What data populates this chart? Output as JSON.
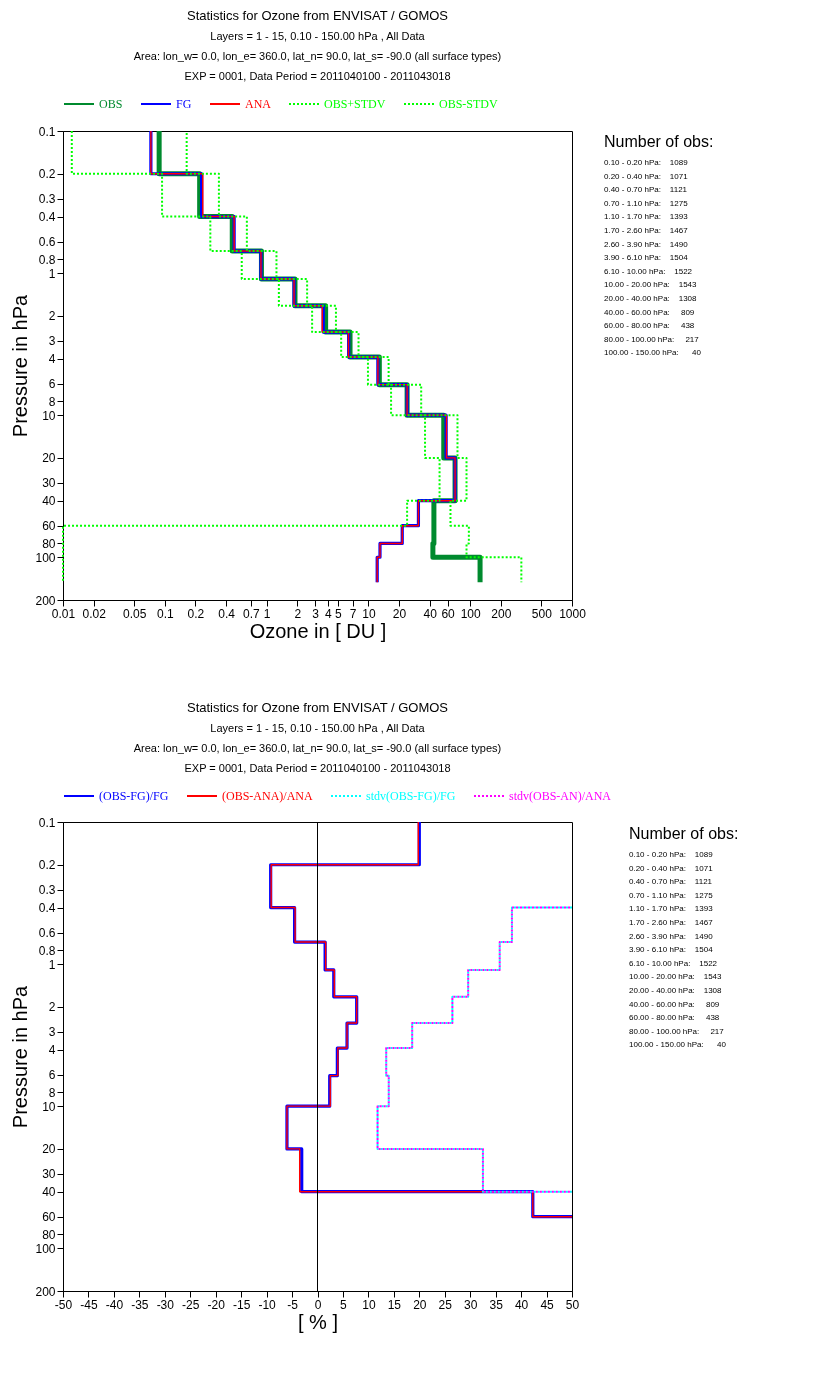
{
  "chart_data": [
    {
      "type": "line",
      "title": "Statistics for Ozone from ENVISAT / GOMOS",
      "subtitle": "Layers =  1 - 15, 0.10 - 150.00 hPa  ,  All Data\nArea: lon_w=   0.0, lon_e= 360.0, lat_n=  90.0, lat_s= -90.0 (all surface types)\nEXP = 0001, Data Period = 2011040100 - 2011043018",
      "xlabel": "Ozone in [ DU ]",
      "ylabel": "Pressure in hPa",
      "log": "xy",
      "grid": false,
      "legend": "top",
      "marker": "none",
      "xlim": [
        0.01,
        1000
      ],
      "xticks": [
        0.01,
        0.02,
        0.05,
        0.1,
        0.2,
        0.4,
        0.7,
        1,
        2,
        3,
        4,
        5,
        7,
        10,
        20,
        40,
        60,
        100,
        200,
        500,
        1000
      ],
      "ylim": [
        200,
        0.1
      ],
      "yticks": [
        0.1,
        0.2,
        0.3,
        0.4,
        0.6,
        0.8,
        1,
        2,
        3,
        4,
        6,
        8,
        10,
        20,
        30,
        40,
        60,
        80,
        100,
        200
      ],
      "series": [
        {
          "name": "OBS",
          "color": "#008a2e",
          "line_style": "solid",
          "x": [
            0.088,
            0.088,
            0.22,
            0.22,
            0.46,
            0.46,
            0.89,
            0.89,
            1.9,
            1.9,
            3.8,
            3.8,
            6.6,
            6.6,
            12.8,
            12.8,
            24,
            24,
            55,
            55,
            71,
            71,
            44,
            44,
            44,
            44,
            43,
            43,
            125,
            125
          ],
          "values": [
            0.1,
            0.2,
            0.2,
            0.4,
            0.4,
            0.7,
            0.7,
            1.1,
            1.1,
            1.7,
            1.7,
            2.6,
            2.6,
            3.9,
            3.9,
            6.1,
            6.1,
            10,
            10,
            20,
            20,
            40,
            40,
            60,
            60,
            80,
            80,
            100,
            100,
            150
          ]
        },
        {
          "name": "FG",
          "color": "#0000ff",
          "line_style": "solid",
          "x": [
            0.073,
            0.073,
            0.23,
            0.23,
            0.48,
            0.48,
            0.88,
            0.88,
            1.86,
            1.86,
            3.6,
            3.6,
            6.4,
            6.4,
            12.4,
            12.4,
            24,
            24,
            58,
            58,
            71,
            71,
            31,
            31,
            21.5,
            21.5,
            13,
            13,
            12.2,
            12.2
          ],
          "values": [
            0.1,
            0.2,
            0.2,
            0.4,
            0.4,
            0.7,
            0.7,
            1.1,
            1.1,
            1.7,
            1.7,
            2.6,
            2.6,
            3.9,
            3.9,
            6.1,
            6.1,
            10,
            10,
            20,
            20,
            40,
            40,
            60,
            60,
            80,
            80,
            100,
            100,
            150
          ]
        },
        {
          "name": "ANA",
          "color": "#ff0000",
          "line_style": "solid",
          "x": [
            0.073,
            0.073,
            0.236,
            0.236,
            0.48,
            0.48,
            0.88,
            0.88,
            1.86,
            1.86,
            3.52,
            3.52,
            6.37,
            6.37,
            12.4,
            12.4,
            24,
            24,
            58.5,
            58.5,
            71,
            71,
            31,
            31,
            21.5,
            21.5,
            13,
            13,
            12.2,
            12.2
          ],
          "values": [
            0.1,
            0.2,
            0.2,
            0.4,
            0.4,
            0.7,
            0.7,
            1.1,
            1.1,
            1.7,
            1.7,
            2.6,
            2.6,
            3.9,
            3.9,
            6.1,
            6.1,
            10,
            10,
            20,
            20,
            40,
            40,
            60,
            60,
            80,
            80,
            100,
            100,
            150
          ]
        },
        {
          "name": "OBS+STDV",
          "color": "#00ff00",
          "line_style": "dotted",
          "x": [
            0.164,
            0.164,
            0.34,
            0.34,
            0.64,
            0.64,
            1.25,
            1.25,
            2.5,
            2.5,
            4.8,
            4.8,
            8,
            8,
            15.8,
            15.8,
            33,
            33,
            75,
            75,
            92,
            92,
            64,
            64,
            97,
            97,
            92,
            92,
            318,
            318
          ],
          "values": [
            0.1,
            0.2,
            0.2,
            0.4,
            0.4,
            0.7,
            0.7,
            1.1,
            1.1,
            1.7,
            1.7,
            2.6,
            2.6,
            3.9,
            3.9,
            6.1,
            6.1,
            10,
            10,
            20,
            20,
            40,
            40,
            60,
            60,
            80,
            80,
            100,
            100,
            150
          ]
        },
        {
          "name": "OBS-STDV",
          "color": "#00ff00",
          "line_style": "dotted",
          "x": [
            0.0122,
            0.0122,
            0.094,
            0.094,
            0.28,
            0.28,
            0.57,
            0.57,
            1.32,
            1.32,
            2.8,
            2.8,
            5.4,
            5.4,
            9.9,
            9.9,
            16.7,
            16.7,
            36,
            36,
            50,
            50,
            24,
            24,
            0.01,
            0.01,
            0.01,
            0.01,
            0.01,
            0.01
          ],
          "values": [
            0.1,
            0.2,
            0.2,
            0.4,
            0.4,
            0.7,
            0.7,
            1.1,
            1.1,
            1.7,
            1.7,
            2.6,
            2.6,
            3.9,
            3.9,
            6.1,
            6.1,
            10,
            10,
            20,
            20,
            40,
            40,
            60,
            60,
            80,
            80,
            100,
            100,
            150
          ]
        }
      ],
      "annotations": [
        "Number of obs:",
        "0.10 - 0.20 hPa:    1089",
        "0.20 - 0.40 hPa:    1071",
        "0.40 - 0.70 hPa:    1121",
        "0.70 - 1.10 hPa:    1275",
        "1.10 - 1.70 hPa:    1393",
        "1.70 - 2.60 hPa:    1467",
        "2.60 - 3.90 hPa:    1490",
        "3.90 - 6.10 hPa:    1504",
        "6.10 - 10.00 hPa:    1522",
        "10.00 - 20.00 hPa:    1543",
        "20.00 - 40.00 hPa:    1308",
        "40.00 - 60.00 hPa:     809",
        "60.00 - 80.00 hPa:     438",
        "80.00 - 100.00 hPa:     217",
        "100.00 - 150.00 hPa:      40"
      ]
    },
    {
      "type": "line",
      "title": "Statistics for Ozone from ENVISAT / GOMOS",
      "subtitle": "Layers =  1 - 15, 0.10 - 150.00 hPa  ,  All Data\nArea: lon_w=   0.0, lon_e= 360.0, lat_n=  90.0, lat_s= -90.0 (all surface types)\nEXP = 0001, Data Period = 2011040100 - 2011043018",
      "xlabel": "[ % ]",
      "ylabel": "Pressure in hPa",
      "log": "y",
      "grid": false,
      "legend": "top",
      "marker": "none",
      "xlim": [
        -50,
        50
      ],
      "xticks": [
        -50,
        -45,
        -40,
        -35,
        -30,
        -25,
        -20,
        -15,
        -10,
        -5,
        0,
        5,
        10,
        15,
        20,
        25,
        30,
        35,
        40,
        45,
        50
      ],
      "ylim": [
        200,
        0.1
      ],
      "yticks": [
        0.1,
        0.2,
        0.3,
        0.4,
        0.6,
        0.8,
        1,
        2,
        3,
        4,
        6,
        8,
        10,
        20,
        30,
        40,
        60,
        80,
        100,
        200
      ],
      "ref_lines": [
        {
          "axis": "x",
          "value": 0,
          "color": "#000000"
        }
      ],
      "series": [
        {
          "name": "(OBS-FG)/FG",
          "color": "#0000ff",
          "line_style": "solid",
          "x": [
            20,
            20,
            -9.2,
            -9.2,
            -4.5,
            -4.5,
            1.5,
            1.5,
            3.2,
            3.2,
            7.7,
            7.7,
            5.8,
            5.8,
            3.9,
            3.9,
            2.4,
            2.4,
            -6,
            -6,
            -3.1,
            -3.1,
            42.3,
            42.3,
            50,
            null,
            null,
            null,
            null,
            null
          ],
          "values": [
            0.1,
            0.2,
            0.2,
            0.4,
            0.4,
            0.7,
            0.7,
            1.1,
            1.1,
            1.7,
            1.7,
            2.6,
            2.6,
            3.9,
            3.9,
            6.1,
            6.1,
            10,
            10,
            20,
            20,
            40,
            40,
            60,
            60,
            null,
            null,
            null,
            null,
            null
          ]
        },
        {
          "name": "(OBS-ANA)/ANA",
          "color": "#ff0000",
          "line_style": "solid",
          "x": [
            19.8,
            19.8,
            -9.1,
            -9.1,
            -4.4,
            -4.4,
            1.6,
            1.6,
            3.3,
            3.3,
            7.7,
            7.7,
            5.8,
            5.8,
            4,
            4,
            2.5,
            2.5,
            -6,
            -6,
            -3.5,
            -3.5,
            42.3,
            42.3,
            50,
            null,
            null,
            null,
            null,
            null
          ],
          "values": [
            0.1,
            0.2,
            0.2,
            0.4,
            0.4,
            0.7,
            0.7,
            1.1,
            1.1,
            1.7,
            1.7,
            2.6,
            2.6,
            3.9,
            3.9,
            6.1,
            6.1,
            10,
            10,
            20,
            20,
            40,
            40,
            60,
            60,
            null,
            null,
            null,
            null,
            null
          ]
        },
        {
          "name": "stdv(OBS-FG)/FG",
          "color": "#00ffff",
          "line_style": "dotted",
          "x": [
            null,
            null,
            null,
            50,
            38.2,
            38.2,
            35.8,
            35.8,
            29.6,
            29.6,
            26.5,
            26.5,
            18.6,
            18.6,
            13.5,
            13.5,
            14,
            14,
            11.8,
            11.8,
            32.5,
            32.5,
            50,
            null,
            null,
            null,
            null,
            null,
            null,
            null
          ],
          "values": [
            null,
            null,
            null,
            0.4,
            0.4,
            0.7,
            0.7,
            1.1,
            1.1,
            1.7,
            1.7,
            2.6,
            2.6,
            3.9,
            3.9,
            6.1,
            6.1,
            10,
            10,
            20,
            20,
            40,
            40,
            null,
            null,
            null,
            null,
            null,
            null,
            null
          ]
        },
        {
          "name": "stdv(OBS-AN)/ANA",
          "color": "#ff00ff",
          "line_style": "dotted",
          "x": [
            null,
            null,
            null,
            50,
            38.2,
            38.2,
            35.8,
            35.8,
            29.6,
            29.6,
            26.5,
            26.5,
            18.6,
            18.6,
            13.5,
            13.5,
            14,
            14,
            11.8,
            11.8,
            32.5,
            32.5,
            50,
            null,
            null,
            null,
            null,
            null,
            null,
            null
          ],
          "values": [
            null,
            null,
            null,
            0.4,
            0.4,
            0.7,
            0.7,
            1.1,
            1.1,
            1.7,
            1.7,
            2.6,
            2.6,
            3.9,
            3.9,
            6.1,
            6.1,
            10,
            10,
            20,
            20,
            40,
            40,
            null,
            null,
            null,
            null,
            null,
            null,
            null
          ]
        }
      ],
      "annotations": [
        "Number of obs:",
        "0.10 - 0.20 hPa:    1089",
        "0.20 - 0.40 hPa:    1071",
        "0.40 - 0.70 hPa:    1121",
        "0.70 - 1.10 hPa:    1275",
        "1.10 - 1.70 hPa:    1393",
        "1.70 - 2.60 hPa:    1467",
        "2.60 - 3.90 hPa:    1490",
        "3.90 - 6.10 hPa:    1504",
        "6.10 - 10.00 hPa:    1522",
        "10.00 - 20.00 hPa:    1543",
        "20.00 - 40.00 hPa:    1308",
        "40.00 - 60.00 hPa:     809",
        "60.00 - 80.00 hPa:     438",
        "80.00 - 100.00 hPa:     217",
        "100.00 - 150.00 hPa:      40"
      ]
    }
  ]
}
